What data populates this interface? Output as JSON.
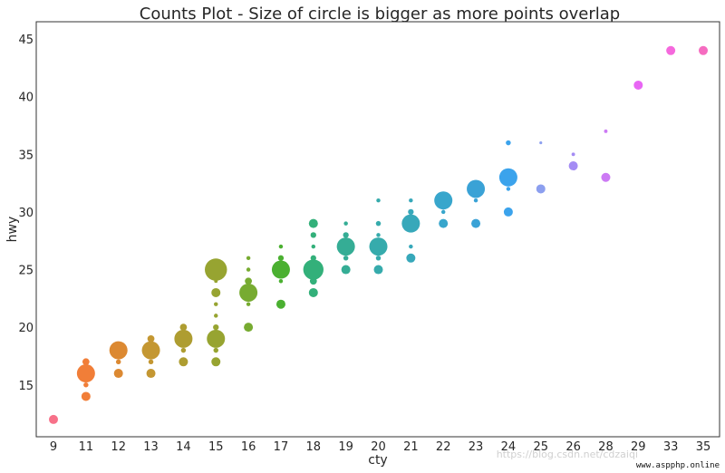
{
  "chart_data": {
    "type": "scatter",
    "title": "Counts Plot - Size of circle is bigger as more points overlap",
    "xlabel": "cty",
    "ylabel": "hwy",
    "categories": [
      "9",
      "11",
      "12",
      "13",
      "14",
      "15",
      "16",
      "17",
      "18",
      "19",
      "20",
      "21",
      "22",
      "23",
      "24",
      "25",
      "26",
      "28",
      "29",
      "33",
      "35"
    ],
    "ylim": [
      10.5,
      46.5
    ],
    "yticks": [
      15,
      20,
      25,
      30,
      35,
      40,
      45
    ],
    "grid": false,
    "points": [
      {
        "x": "9",
        "y": 12,
        "count": 1
      },
      {
        "x": "11",
        "y": 14,
        "count": 1
      },
      {
        "x": "11",
        "y": 15,
        "count": 0.3
      },
      {
        "x": "11",
        "y": 16,
        "count": 4
      },
      {
        "x": "11",
        "y": 17,
        "count": 0.6
      },
      {
        "x": "12",
        "y": 16,
        "count": 1
      },
      {
        "x": "12",
        "y": 17,
        "count": 0.3
      },
      {
        "x": "12",
        "y": 18,
        "count": 4
      },
      {
        "x": "13",
        "y": 16,
        "count": 1
      },
      {
        "x": "13",
        "y": 17,
        "count": 0.3
      },
      {
        "x": "13",
        "y": 18,
        "count": 4
      },
      {
        "x": "13",
        "y": 19,
        "count": 0.6
      },
      {
        "x": "14",
        "y": 17,
        "count": 1
      },
      {
        "x": "14",
        "y": 18,
        "count": 0.3
      },
      {
        "x": "14",
        "y": 19,
        "count": 4
      },
      {
        "x": "14",
        "y": 20,
        "count": 0.6
      },
      {
        "x": "15",
        "y": 17,
        "count": 1
      },
      {
        "x": "15",
        "y": 18,
        "count": 0.3
      },
      {
        "x": "15",
        "y": 19,
        "count": 4
      },
      {
        "x": "15",
        "y": 20,
        "count": 0.4
      },
      {
        "x": "15",
        "y": 21,
        "count": 0.2
      },
      {
        "x": "15",
        "y": 22,
        "count": 0.2
      },
      {
        "x": "15",
        "y": 23,
        "count": 1
      },
      {
        "x": "15",
        "y": 24,
        "count": 0.15
      },
      {
        "x": "15",
        "y": 25,
        "count": 6
      },
      {
        "x": "16",
        "y": 20,
        "count": 1
      },
      {
        "x": "16",
        "y": 22,
        "count": 0.2
      },
      {
        "x": "16",
        "y": 23,
        "count": 4
      },
      {
        "x": "16",
        "y": 24,
        "count": 0.6
      },
      {
        "x": "16",
        "y": 25,
        "count": 0.2
      },
      {
        "x": "16",
        "y": 26,
        "count": 0.2
      },
      {
        "x": "17",
        "y": 22,
        "count": 1
      },
      {
        "x": "17",
        "y": 24,
        "count": 0.2
      },
      {
        "x": "17",
        "y": 25,
        "count": 4
      },
      {
        "x": "17",
        "y": 26,
        "count": 0.4
      },
      {
        "x": "17",
        "y": 27,
        "count": 0.2
      },
      {
        "x": "18",
        "y": 23,
        "count": 1
      },
      {
        "x": "18",
        "y": 24,
        "count": 0.6
      },
      {
        "x": "18",
        "y": 25,
        "count": 5
      },
      {
        "x": "18",
        "y": 26,
        "count": 0.4
      },
      {
        "x": "18",
        "y": 27,
        "count": 0.2
      },
      {
        "x": "18",
        "y": 28,
        "count": 0.4
      },
      {
        "x": "18",
        "y": 29,
        "count": 1
      },
      {
        "x": "19",
        "y": 25,
        "count": 1
      },
      {
        "x": "19",
        "y": 26,
        "count": 0.3
      },
      {
        "x": "19",
        "y": 27,
        "count": 4
      },
      {
        "x": "19",
        "y": 28,
        "count": 0.4
      },
      {
        "x": "19",
        "y": 29,
        "count": 0.2
      },
      {
        "x": "20",
        "y": 25,
        "count": 1
      },
      {
        "x": "20",
        "y": 26,
        "count": 0.3
      },
      {
        "x": "20",
        "y": 27,
        "count": 4
      },
      {
        "x": "20",
        "y": 28,
        "count": 0.2
      },
      {
        "x": "20",
        "y": 29,
        "count": 0.3
      },
      {
        "x": "20",
        "y": 31,
        "count": 0.2
      },
      {
        "x": "21",
        "y": 26,
        "count": 1
      },
      {
        "x": "21",
        "y": 27,
        "count": 0.2
      },
      {
        "x": "21",
        "y": 29,
        "count": 4
      },
      {
        "x": "21",
        "y": 30,
        "count": 0.4
      },
      {
        "x": "21",
        "y": 31,
        "count": 0.2
      },
      {
        "x": "22",
        "y": 29,
        "count": 1
      },
      {
        "x": "22",
        "y": 30,
        "count": 0.2
      },
      {
        "x": "22",
        "y": 31,
        "count": 4
      },
      {
        "x": "23",
        "y": 29,
        "count": 1
      },
      {
        "x": "23",
        "y": 31,
        "count": 0.2
      },
      {
        "x": "23",
        "y": 32,
        "count": 4
      },
      {
        "x": "24",
        "y": 30,
        "count": 1
      },
      {
        "x": "24",
        "y": 32,
        "count": 0.2
      },
      {
        "x": "24",
        "y": 33,
        "count": 4
      },
      {
        "x": "24",
        "y": 36,
        "count": 0.3
      },
      {
        "x": "25",
        "y": 32,
        "count": 1
      },
      {
        "x": "25",
        "y": 36,
        "count": 0.1
      },
      {
        "x": "26",
        "y": 34,
        "count": 1
      },
      {
        "x": "26",
        "y": 35,
        "count": 0.15
      },
      {
        "x": "28",
        "y": 33,
        "count": 1
      },
      {
        "x": "28",
        "y": 37,
        "count": 0.15
      },
      {
        "x": "29",
        "y": 41,
        "count": 1
      },
      {
        "x": "33",
        "y": 44,
        "count": 1
      },
      {
        "x": "35",
        "y": 44,
        "count": 1
      }
    ],
    "colors": [
      "#f77189",
      "#f17e38",
      "#dc8932",
      "#c49732",
      "#ae9d31",
      "#97a431",
      "#77ab31",
      "#4bb031",
      "#33b07a",
      "#35ad95",
      "#36abac",
      "#37a8ba",
      "#38a6cc",
      "#3aa2d6",
      "#3ba3ec",
      "#8c9fef",
      "#a48cf4",
      "#cc7af4",
      "#e866f4",
      "#f569dd",
      "#f56cc0"
    ]
  },
  "watermark": "www.aspphp.online",
  "watermark_faint": "https://blog.csdn.net/cdzaiqi"
}
